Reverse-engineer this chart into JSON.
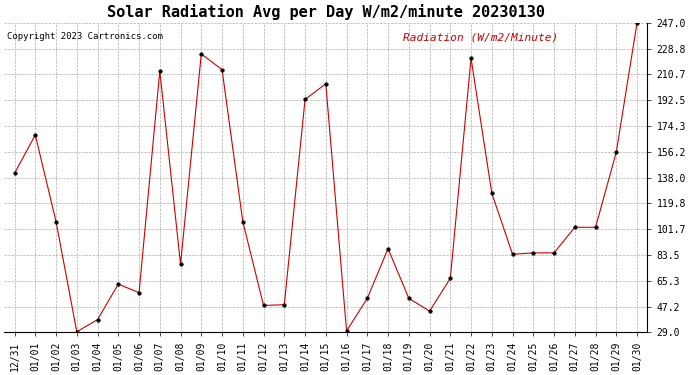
{
  "title": "Solar Radiation Avg per Day W/m2/minute 20230130",
  "copyright": "Copyright 2023 Cartronics.com",
  "legend_label": "Radiation (W/m2/Minute)",
  "dates": [
    "12/31",
    "01/01",
    "01/02",
    "01/03",
    "01/04",
    "01/05",
    "01/06",
    "01/07",
    "01/08",
    "01/09",
    "01/10",
    "01/11",
    "01/12",
    "01/13",
    "01/14",
    "01/15",
    "01/16",
    "01/17",
    "01/18",
    "01/19",
    "01/20",
    "01/21",
    "01/22",
    "01/23",
    "01/24",
    "01/25",
    "01/26",
    "01/27",
    "01/28",
    "01/29",
    "01/30"
  ],
  "values": [
    141.0,
    168.0,
    107.0,
    29.5,
    38.0,
    63.0,
    57.0,
    213.0,
    77.0,
    225.0,
    214.0,
    107.0,
    48.0,
    48.5,
    193.0,
    204.0,
    30.0,
    53.0,
    88.0,
    53.0,
    44.0,
    67.0,
    222.0,
    127.0,
    84.0,
    85.0,
    85.0,
    103.0,
    103.0,
    156.0,
    247.0
  ],
  "line_color": "#cc0000",
  "marker": "o",
  "marker_size": 2.5,
  "background_color": "#ffffff",
  "grid_color": "#999999",
  "ylim": [
    29.0,
    247.0
  ],
  "yticks": [
    29.0,
    47.2,
    65.3,
    83.5,
    101.7,
    119.8,
    138.0,
    156.2,
    174.3,
    192.5,
    210.7,
    228.8,
    247.0
  ],
  "title_fontsize": 11,
  "tick_fontsize": 7,
  "copyright_fontsize": 6.5,
  "legend_color": "#cc0000",
  "legend_fontsize": 8,
  "fig_width": 6.9,
  "fig_height": 3.75,
  "dpi": 100
}
